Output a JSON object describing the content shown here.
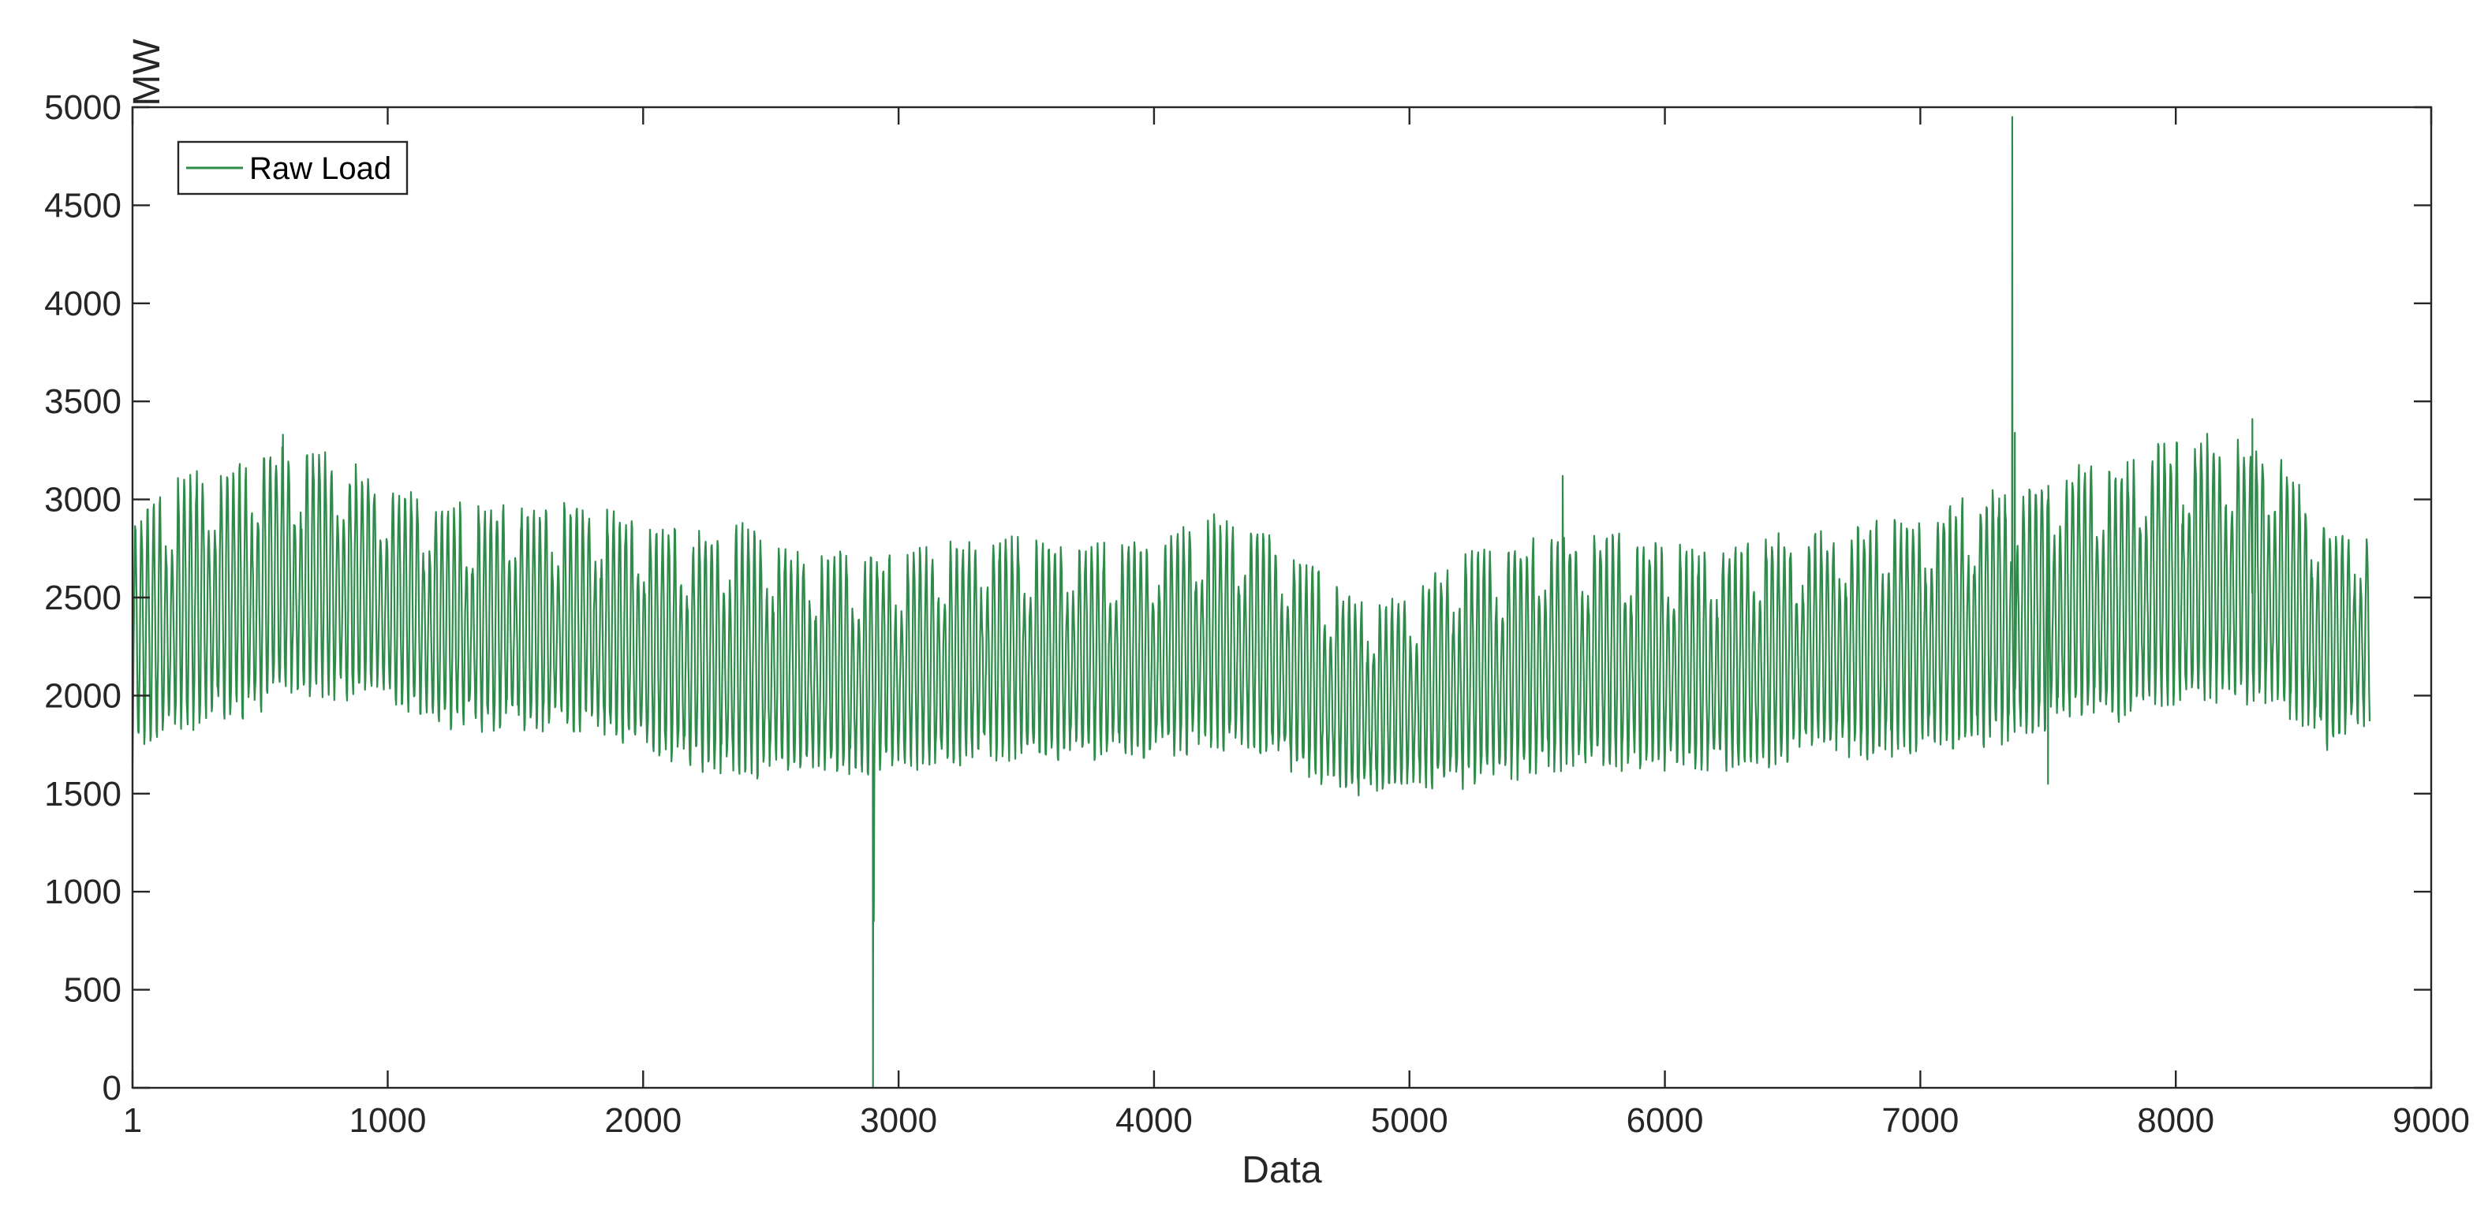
{
  "chart_data": {
    "type": "line",
    "title": "",
    "xlabel": "Data",
    "ylabel": "MW",
    "xlim": [
      1,
      9000
    ],
    "ylim": [
      0,
      5000
    ],
    "x_ticks": [
      1,
      1000,
      2000,
      3000,
      4000,
      5000,
      6000,
      7000,
      8000,
      9000
    ],
    "y_ticks": [
      0,
      500,
      1000,
      1500,
      2000,
      2500,
      3000,
      3500,
      4000,
      4500,
      5000
    ],
    "grid": false,
    "legend": {
      "position": "top-left",
      "entries": [
        "Raw Load"
      ]
    },
    "series": [
      {
        "name": "Raw Load",
        "color": "#2e8b4a",
        "x_range": [
          1,
          8760
        ],
        "envelope": {
          "x": [
            1,
            200,
            400,
            600,
            800,
            1000,
            1200,
            1400,
            1600,
            1800,
            2000,
            2200,
            2400,
            2600,
            2800,
            3000,
            3200,
            3400,
            3600,
            3800,
            4000,
            4200,
            4400,
            4600,
            4800,
            5000,
            5200,
            5400,
            5600,
            5800,
            6000,
            6200,
            6400,
            6600,
            6800,
            7000,
            7200,
            7400,
            7600,
            7800,
            8000,
            8200,
            8400,
            8600,
            8760
          ],
          "max": [
            2900,
            3150,
            3200,
            3300,
            3250,
            3100,
            3000,
            3000,
            3000,
            3000,
            2900,
            2850,
            2900,
            2750,
            2750,
            2750,
            2800,
            2850,
            2800,
            2800,
            2850,
            2950,
            2900,
            2700,
            2500,
            2550,
            2750,
            2800,
            2850,
            2850,
            2800,
            2750,
            2850,
            2850,
            2900,
            2950,
            3050,
            3100,
            3200,
            3200,
            3350,
            3350,
            3250,
            2900,
            2850
          ],
          "min": [
            1700,
            1800,
            1850,
            1950,
            1950,
            1950,
            1800,
            1800,
            1800,
            1800,
            1700,
            1600,
            1550,
            1600,
            1550,
            1600,
            1600,
            1650,
            1650,
            1650,
            1650,
            1700,
            1700,
            1550,
            1450,
            1500,
            1500,
            1550,
            1600,
            1600,
            1600,
            1600,
            1600,
            1700,
            1650,
            1700,
            1700,
            1750,
            1850,
            1850,
            1900,
            1950,
            1900,
            1700,
            1850
          ]
        },
        "daily_cycle_period": 24,
        "weekly_cycle_period": 168,
        "spikes": [
          {
            "x": 1,
            "y": 1650
          },
          {
            "x": 590,
            "y": 3330
          },
          {
            "x": 2900,
            "y": 0
          },
          {
            "x": 2903,
            "y": 850
          },
          {
            "x": 5600,
            "y": 3120
          },
          {
            "x": 7360,
            "y": 4950
          },
          {
            "x": 7370,
            "y": 3340
          },
          {
            "x": 7500,
            "y": 1550
          },
          {
            "x": 8300,
            "y": 3410
          }
        ]
      }
    ]
  }
}
